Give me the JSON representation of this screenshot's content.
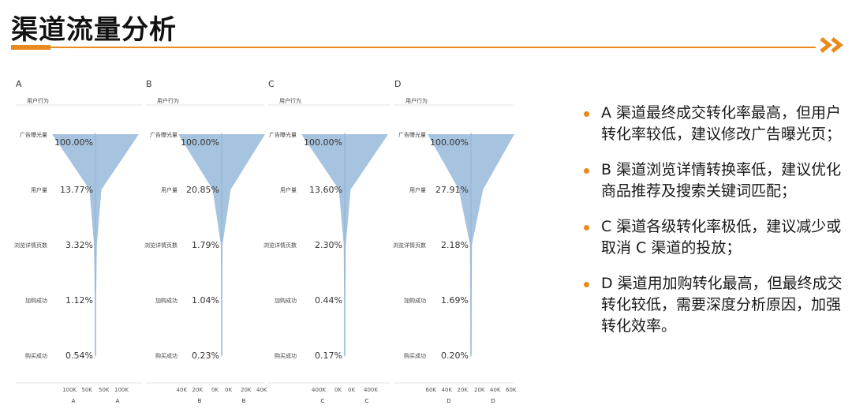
{
  "page": {
    "title": "渠道流量分析",
    "accent_color": "#e98a1c",
    "funnel_color": "#a6c3df"
  },
  "chart_data": [
    {
      "type": "funnel",
      "panel": "A",
      "header": "用户行为",
      "stages": [
        "广告曝光量",
        "用户量",
        "浏览详情页数",
        "加购成功",
        "购买成功"
      ],
      "percent_labels": [
        "100.00%",
        "13.77%",
        "3.32%",
        "1.12%",
        "0.54%"
      ],
      "percent_values": [
        100.0,
        13.77,
        3.32,
        1.12,
        0.54
      ],
      "axis_ticks": [
        "100K",
        "50K",
        "50K",
        "100K"
      ],
      "axis_labels": [
        "A",
        "A"
      ]
    },
    {
      "type": "funnel",
      "panel": "B",
      "header": "用户行为",
      "stages": [
        "广告曝光量",
        "用户量",
        "浏览详情页数",
        "加购成功",
        "购买成功"
      ],
      "percent_labels": [
        "100.00%",
        "20.85%",
        "1.79%",
        "1.04%",
        "0.23%"
      ],
      "percent_values": [
        100.0,
        20.85,
        1.79,
        1.04,
        0.23
      ],
      "axis_ticks": [
        "40K",
        "20K",
        "0K",
        "0K",
        "20K",
        "40K"
      ],
      "axis_labels": [
        "B",
        "B"
      ]
    },
    {
      "type": "funnel",
      "panel": "C",
      "header": "用户行为",
      "stages": [
        "广告曝光量",
        "用户量",
        "浏览详情页数",
        "加购成功",
        "购买成功"
      ],
      "percent_labels": [
        "100.00%",
        "13.60%",
        "2.30%",
        "0.44%",
        "0.17%"
      ],
      "percent_values": [
        100.0,
        13.6,
        2.3,
        0.44,
        0.17
      ],
      "axis_ticks": [
        "400K",
        "0K",
        "0K",
        "400K"
      ],
      "axis_labels": [
        "C",
        "C"
      ]
    },
    {
      "type": "funnel",
      "panel": "D",
      "header": "用户行为",
      "stages": [
        "广告曝光量",
        "用户量",
        "浏览详情页数",
        "加购成功",
        "购买成功"
      ],
      "percent_labels": [
        "100.00%",
        "27.91%",
        "2.18%",
        "1.69%",
        "0.20%"
      ],
      "percent_values": [
        100.0,
        27.91,
        2.18,
        1.69,
        0.2
      ],
      "axis_ticks": [
        "60K",
        "40K",
        "20K",
        "20K",
        "40K",
        "60K"
      ],
      "axis_labels": [
        "D",
        "D"
      ]
    }
  ],
  "insights": [
    "A 渠道最终成交转化率最高，但用户转化率较低，建议修改广告曝光页；",
    "B 渠道浏览详情转换率低，建议优化商品推荐及搜索关键词匹配；",
    "C 渠道各级转化率极低，建议减少或取消 C 渠道的投放；",
    "D 渠道用加购转化最高，但最终成交转化较低，需要深度分析原因，加强转化效率。"
  ]
}
